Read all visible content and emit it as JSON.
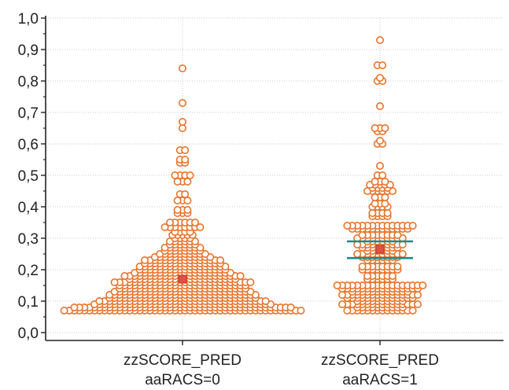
{
  "chart_data": {
    "type": "scatter",
    "subtype": "beeswarm",
    "title": "",
    "xlabel": "",
    "ylabel": "",
    "ylim": [
      0.0,
      1.0
    ],
    "y_ticks": [
      "0,0",
      "0,1",
      "0,2",
      "0,3",
      "0,4",
      "0,5",
      "0,6",
      "0,7",
      "0,8",
      "0,9",
      "1,0"
    ],
    "y_tick_values": [
      0.0,
      0.1,
      0.2,
      0.3,
      0.4,
      0.5,
      0.6,
      0.7,
      0.8,
      0.9,
      1.0
    ],
    "grid": true,
    "colors": {
      "point": "#e8732a",
      "mean": "#e0504a",
      "ci": "#1a8a8a",
      "grid": "#c8c8c8",
      "axis": "#222222"
    },
    "categories": [
      {
        "label_line1": "zzSCORE_PRED",
        "label_line2": "aaRACS=0",
        "mean": 0.17,
        "ci": []
      },
      {
        "label_line1": "zzSCORE_PRED",
        "label_line2": "aaRACS=1",
        "mean": 0.265,
        "ci": [
          0.29,
          0.237
        ]
      }
    ],
    "groups": [
      {
        "name": "aaRACS=0",
        "bins": [
          {
            "y": 0.07,
            "n": 48
          },
          {
            "y": 0.08,
            "n": 44
          },
          {
            "y": 0.09,
            "n": 36
          },
          {
            "y": 0.1,
            "n": 34
          },
          {
            "y": 0.11,
            "n": 30
          },
          {
            "y": 0.12,
            "n": 30
          },
          {
            "y": 0.13,
            "n": 28
          },
          {
            "y": 0.14,
            "n": 26
          },
          {
            "y": 0.15,
            "n": 26
          },
          {
            "y": 0.16,
            "n": 28
          },
          {
            "y": 0.17,
            "n": 22
          },
          {
            "y": 0.18,
            "n": 24
          },
          {
            "y": 0.19,
            "n": 20
          },
          {
            "y": 0.2,
            "n": 18
          },
          {
            "y": 0.21,
            "n": 18
          },
          {
            "y": 0.22,
            "n": 16
          },
          {
            "y": 0.23,
            "n": 16
          },
          {
            "y": 0.24,
            "n": 12
          },
          {
            "y": 0.25,
            "n": 10
          },
          {
            "y": 0.26,
            "n": 8
          },
          {
            "y": 0.27,
            "n": 8
          },
          {
            "y": 0.28,
            "n": 6
          },
          {
            "y": 0.29,
            "n": 6
          },
          {
            "y": 0.3,
            "n": 4
          },
          {
            "y": 0.31,
            "n": 5
          },
          {
            "y": 0.32,
            "n": 4
          },
          {
            "y": 0.335,
            "n": 8
          },
          {
            "y": 0.35,
            "n": 6
          },
          {
            "y": 0.38,
            "n": 3
          },
          {
            "y": 0.39,
            "n": 3
          },
          {
            "y": 0.42,
            "n": 3
          },
          {
            "y": 0.44,
            "n": 2
          },
          {
            "y": 0.48,
            "n": 3
          },
          {
            "y": 0.5,
            "n": 4
          },
          {
            "y": 0.54,
            "n": 2
          },
          {
            "y": 0.55,
            "n": 2
          },
          {
            "y": 0.58,
            "n": 2
          },
          {
            "y": 0.65,
            "n": 1
          },
          {
            "y": 0.67,
            "n": 1
          },
          {
            "y": 0.73,
            "n": 1
          },
          {
            "y": 0.84,
            "n": 1
          }
        ]
      },
      {
        "name": "aaRACS=1",
        "bins": [
          {
            "y": 0.07,
            "n": 14
          },
          {
            "y": 0.08,
            "n": 10
          },
          {
            "y": 0.09,
            "n": 16
          },
          {
            "y": 0.1,
            "n": 10
          },
          {
            "y": 0.11,
            "n": 14
          },
          {
            "y": 0.12,
            "n": 16
          },
          {
            "y": 0.13,
            "n": 12
          },
          {
            "y": 0.14,
            "n": 16
          },
          {
            "y": 0.15,
            "n": 18
          },
          {
            "y": 0.17,
            "n": 6
          },
          {
            "y": 0.18,
            "n": 6
          },
          {
            "y": 0.2,
            "n": 8
          },
          {
            "y": 0.21,
            "n": 8
          },
          {
            "y": 0.23,
            "n": 6
          },
          {
            "y": 0.24,
            "n": 8
          },
          {
            "y": 0.25,
            "n": 10
          },
          {
            "y": 0.26,
            "n": 6
          },
          {
            "y": 0.27,
            "n": 8
          },
          {
            "y": 0.28,
            "n": 10
          },
          {
            "y": 0.29,
            "n": 6
          },
          {
            "y": 0.3,
            "n": 10
          },
          {
            "y": 0.31,
            "n": 8
          },
          {
            "y": 0.33,
            "n": 12
          },
          {
            "y": 0.34,
            "n": 14
          },
          {
            "y": 0.37,
            "n": 4
          },
          {
            "y": 0.38,
            "n": 4
          },
          {
            "y": 0.4,
            "n": 4
          },
          {
            "y": 0.41,
            "n": 3
          },
          {
            "y": 0.43,
            "n": 3
          },
          {
            "y": 0.45,
            "n": 6
          },
          {
            "y": 0.46,
            "n": 4
          },
          {
            "y": 0.47,
            "n": 5
          },
          {
            "y": 0.48,
            "n": 3
          },
          {
            "y": 0.5,
            "n": 2
          },
          {
            "y": 0.53,
            "n": 1
          },
          {
            "y": 0.6,
            "n": 2
          },
          {
            "y": 0.61,
            "n": 1
          },
          {
            "y": 0.64,
            "n": 2
          },
          {
            "y": 0.65,
            "n": 3
          },
          {
            "y": 0.72,
            "n": 1
          },
          {
            "y": 0.8,
            "n": 2
          },
          {
            "y": 0.81,
            "n": 1
          },
          {
            "y": 0.85,
            "n": 2
          },
          {
            "y": 0.93,
            "n": 1
          }
        ]
      }
    ]
  }
}
